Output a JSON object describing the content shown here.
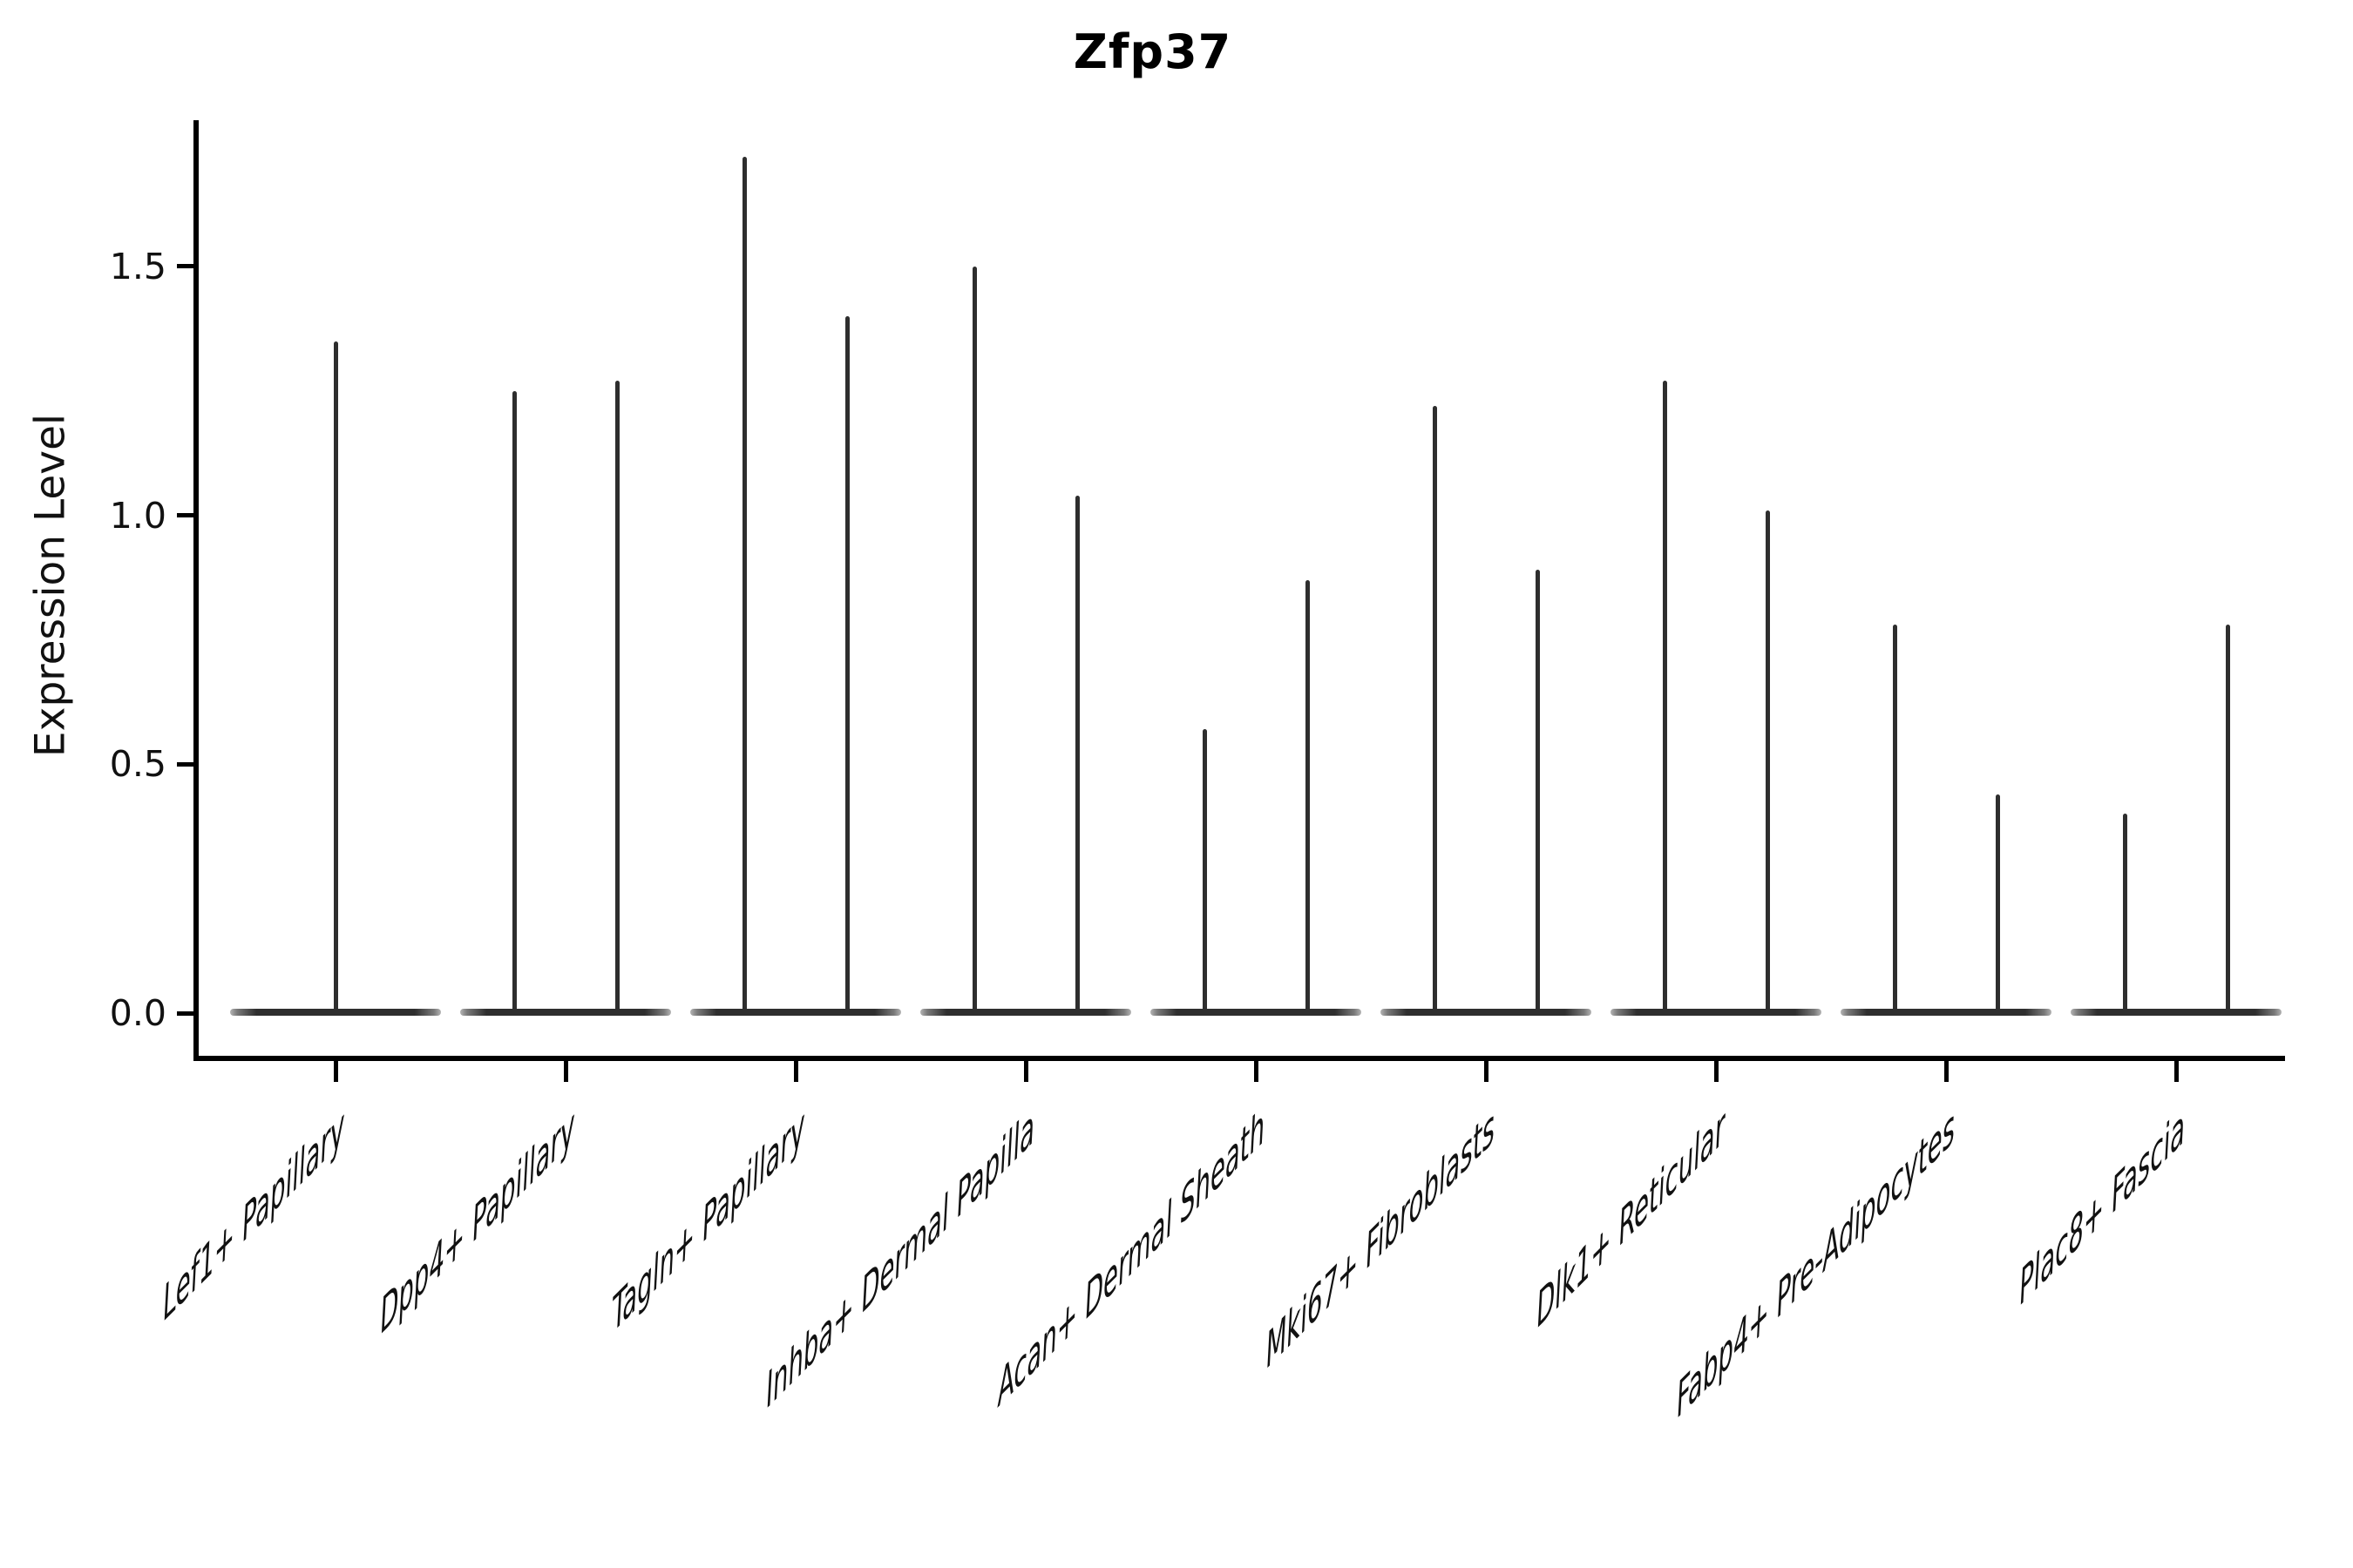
{
  "chart_data": {
    "type": "violin",
    "title": "Zfp37",
    "ylabel": "Expression Level",
    "xlabel": "",
    "grid": false,
    "legend": "none",
    "background": "#ffffff",
    "ink_color": "#2e2e2e",
    "axis_color": "#000000",
    "y_axis": {
      "tick_labels": [
        "0.0",
        "0.5",
        "1.0",
        "1.5"
      ],
      "tick_values": [
        0.0,
        0.5,
        1.0,
        1.5
      ],
      "ylim": [
        -0.09,
        1.79
      ]
    },
    "categories": [
      {
        "label": "Lef1+ Papillary",
        "spikes": [
          {
            "pos": 0,
            "max": 1.35
          }
        ]
      },
      {
        "label": "Dpp4+ Papillary",
        "spikes": [
          {
            "pos": -1,
            "max": 1.25
          },
          {
            "pos": 1,
            "max": 1.27
          }
        ]
      },
      {
        "label": "Tagln+ Papillary",
        "spikes": [
          {
            "pos": -1,
            "max": 1.72
          },
          {
            "pos": 1,
            "max": 1.4
          }
        ]
      },
      {
        "label": "Inhba+ Dermal Papilla",
        "spikes": [
          {
            "pos": -1,
            "max": 1.5
          },
          {
            "pos": 1,
            "max": 1.04
          }
        ]
      },
      {
        "label": "Acan+ Dermal Sheath",
        "spikes": [
          {
            "pos": -1,
            "max": 0.57
          },
          {
            "pos": 1,
            "max": 0.87
          }
        ]
      },
      {
        "label": "Mki67+ Fibroblasts",
        "spikes": [
          {
            "pos": -1,
            "max": 1.22
          },
          {
            "pos": 1,
            "max": 0.89
          }
        ]
      },
      {
        "label": "Dlk1+ Reticular",
        "spikes": [
          {
            "pos": -1,
            "max": 1.27
          },
          {
            "pos": 1,
            "max": 1.01
          }
        ]
      },
      {
        "label": "Fabp4+ Pre-Adipocytes",
        "spikes": [
          {
            "pos": -1,
            "max": 0.78
          },
          {
            "pos": 1,
            "max": 0.44
          }
        ]
      },
      {
        "label": "Plac8+ Fascia",
        "spikes": [
          {
            "pos": -1,
            "max": 0.4
          },
          {
            "pos": 1,
            "max": 0.78
          }
        ]
      }
    ],
    "violin_zero_mass": "all categories have a wide flat density bar at expression 0"
  }
}
